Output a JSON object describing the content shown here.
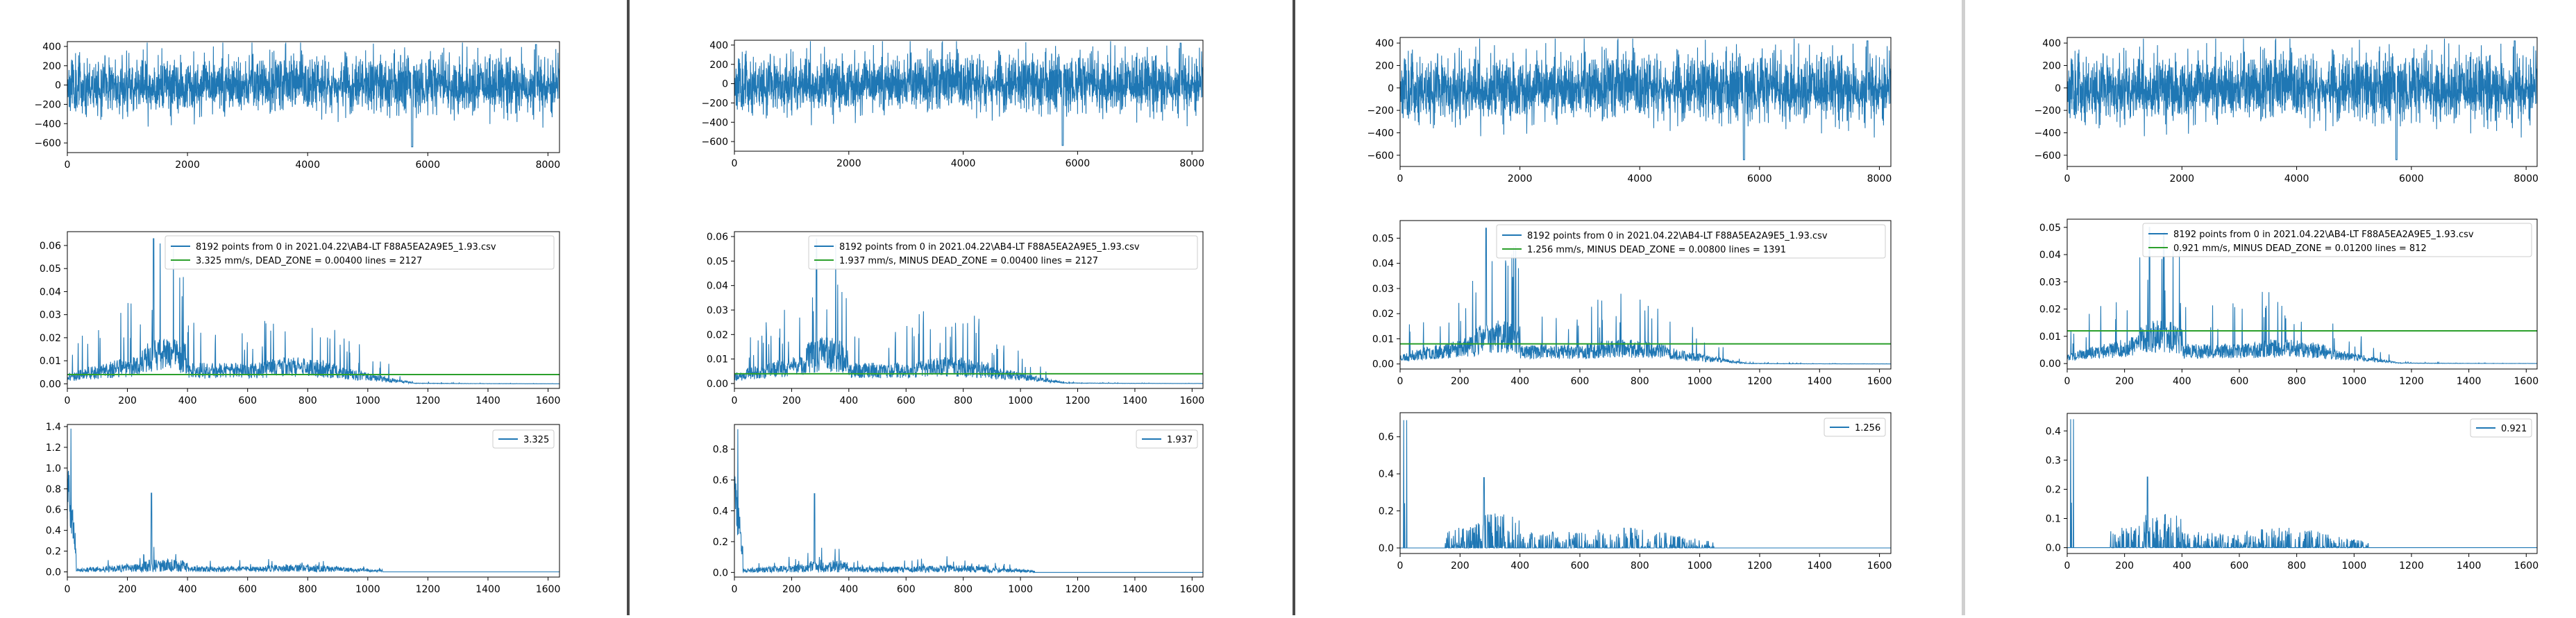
{
  "colors": {
    "series": "#1f77b4",
    "threshold": "#2ca02c",
    "axis": "#000000"
  },
  "panels": [
    {
      "legend_top": [
        "8192 points from 0  in  2021.04.22\\AB4-LT F88A5EA2A9E5_1.93.csv",
        "3.325 mm/s,  DEAD_ZONE = 0.00400     lines = 2127"
      ],
      "legend_bottom": "3.325"
    },
    {
      "legend_top": [
        "8192 points from 0  in  2021.04.22\\AB4-LT F88A5EA2A9E5_1.93.csv",
        "1.937 mm/s,  MINUS  DEAD_ZONE = 0.00400     lines = 2127"
      ],
      "legend_bottom": "1.937"
    },
    {
      "legend_top": [
        "8192 points from 0  in  2021.04.22\\AB4-LT F88A5EA2A9E5_1.93.csv",
        "1.256 mm/s,  MINUS  DEAD_ZONE = 0.00800     lines = 1391"
      ],
      "legend_bottom": "1.256"
    },
    {
      "legend_top": [
        "8192 points from 0  in  2021.04.22\\AB4-LT F88A5EA2A9E5_1.93.csv",
        "0.921 mm/s,  MINUS  DEAD_ZONE = 0.01200     lines = 812"
      ],
      "legend_bottom": "0.921"
    }
  ],
  "chart_data": [
    {
      "type": "line",
      "panel": 0,
      "row": "signal",
      "xlim": [
        0,
        8192
      ],
      "ylim": [
        -700,
        450
      ],
      "xticks": [
        0,
        2000,
        4000,
        6000,
        8000
      ],
      "yticks": [
        -600,
        -400,
        -200,
        0,
        200,
        400
      ],
      "amplitude": 260,
      "seed": 11
    },
    {
      "type": "line",
      "panel": 0,
      "row": "spectrum",
      "xlim": [
        0,
        1638
      ],
      "ylim": [
        -0.002,
        0.066
      ],
      "xticks": [
        0,
        200,
        400,
        600,
        800,
        1000,
        1200,
        1400,
        1600
      ],
      "yticks": [
        0.0,
        0.01,
        0.02,
        0.03,
        0.04,
        0.05,
        0.06
      ],
      "threshold": 0.004,
      "peak": 0.063,
      "seed": 21
    },
    {
      "type": "line",
      "panel": 0,
      "row": "residual",
      "xlim": [
        0,
        1638
      ],
      "ylim": [
        -0.05,
        1.42
      ],
      "xticks": [
        0,
        200,
        400,
        600,
        800,
        1000,
        1200,
        1400,
        1600
      ],
      "yticks": [
        0.0,
        0.2,
        0.4,
        0.6,
        0.8,
        1.0,
        1.2,
        1.4
      ],
      "peak": 1.38,
      "seed": 31
    },
    {
      "type": "line",
      "panel": 1,
      "row": "signal",
      "xlim": [
        0,
        8192
      ],
      "ylim": [
        -700,
        450
      ],
      "xticks": [
        0,
        2000,
        4000,
        6000,
        8000
      ],
      "yticks": [
        -600,
        -400,
        -200,
        0,
        200,
        400
      ],
      "amplitude": 260,
      "seed": 11
    },
    {
      "type": "line",
      "panel": 1,
      "row": "spectrum",
      "xlim": [
        0,
        1638
      ],
      "ylim": [
        -0.002,
        0.062
      ],
      "xticks": [
        0,
        200,
        400,
        600,
        800,
        1000,
        1200,
        1400,
        1600
      ],
      "yticks": [
        0.0,
        0.01,
        0.02,
        0.03,
        0.04,
        0.05,
        0.06
      ],
      "threshold": 0.004,
      "peak": 0.059,
      "seed": 22
    },
    {
      "type": "line",
      "panel": 1,
      "row": "residual",
      "xlim": [
        0,
        1638
      ],
      "ylim": [
        -0.03,
        0.96
      ],
      "xticks": [
        0,
        200,
        400,
        600,
        800,
        1000,
        1200,
        1400,
        1600
      ],
      "yticks": [
        0.0,
        0.2,
        0.4,
        0.6,
        0.8
      ],
      "peak": 0.93,
      "seed": 32
    },
    {
      "type": "line",
      "panel": 2,
      "row": "signal",
      "xlim": [
        0,
        8192
      ],
      "ylim": [
        -700,
        450
      ],
      "xticks": [
        0,
        2000,
        4000,
        6000,
        8000
      ],
      "yticks": [
        -600,
        -400,
        -200,
        0,
        200,
        400
      ],
      "amplitude": 260,
      "seed": 11
    },
    {
      "type": "line",
      "panel": 2,
      "row": "spectrum",
      "xlim": [
        0,
        1638
      ],
      "ylim": [
        -0.002,
        0.057
      ],
      "xticks": [
        0,
        200,
        400,
        600,
        800,
        1000,
        1200,
        1400,
        1600
      ],
      "yticks": [
        0.0,
        0.01,
        0.02,
        0.03,
        0.04,
        0.05
      ],
      "threshold": 0.008,
      "peak": 0.054,
      "seed": 23
    },
    {
      "type": "line",
      "panel": 2,
      "row": "residual",
      "xlim": [
        0,
        1638
      ],
      "ylim": [
        -0.03,
        0.73
      ],
      "xticks": [
        0,
        200,
        400,
        600,
        800,
        1000,
        1200,
        1400,
        1600
      ],
      "yticks": [
        0.0,
        0.2,
        0.4,
        0.6
      ],
      "peak": 0.69,
      "seed": 33
    },
    {
      "type": "line",
      "panel": 3,
      "row": "signal",
      "xlim": [
        0,
        8192
      ],
      "ylim": [
        -700,
        450
      ],
      "xticks": [
        0,
        2000,
        4000,
        6000,
        8000
      ],
      "yticks": [
        -600,
        -400,
        -200,
        0,
        200,
        400
      ],
      "amplitude": 260,
      "seed": 11
    },
    {
      "type": "line",
      "panel": 3,
      "row": "spectrum",
      "xlim": [
        0,
        1638
      ],
      "ylim": [
        -0.002,
        0.053
      ],
      "xticks": [
        0,
        200,
        400,
        600,
        800,
        1000,
        1200,
        1400,
        1600
      ],
      "yticks": [
        0.0,
        0.01,
        0.02,
        0.03,
        0.04,
        0.05
      ],
      "threshold": 0.012,
      "peak": 0.05,
      "seed": 24
    },
    {
      "type": "line",
      "panel": 3,
      "row": "residual",
      "xlim": [
        0,
        1638
      ],
      "ylim": [
        -0.02,
        0.46
      ],
      "xticks": [
        0,
        200,
        400,
        600,
        800,
        1000,
        1200,
        1400,
        1600
      ],
      "yticks": [
        0.0,
        0.1,
        0.2,
        0.3,
        0.4
      ],
      "peak": 0.44,
      "seed": 34
    }
  ]
}
